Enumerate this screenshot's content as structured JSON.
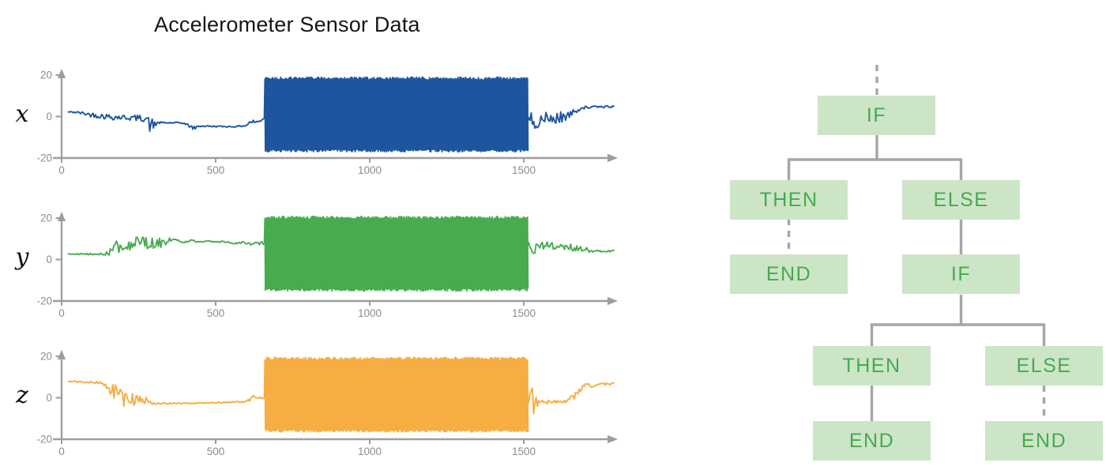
{
  "title": "Accelerometer Sensor Data",
  "colors": {
    "series_x": "#1e559e",
    "series_y": "#47ab4f",
    "series_z": "#f6ad41",
    "axis": "#9e9e9e",
    "tick_text": "#8c8c8c",
    "node_fill": "#cce5c7",
    "node_text": "#46a94f",
    "edge": "#a6a6a6"
  },
  "chart_data": [
    {
      "type": "line",
      "series_label": "x",
      "color": "#1e559e",
      "xlim": [
        0,
        1850
      ],
      "ylim": [
        -20,
        20
      ],
      "xticks": [
        "0",
        "500",
        "1000",
        "1500"
      ],
      "xtick_values": [
        0,
        500,
        1000,
        1500
      ],
      "yticks": [
        "20",
        "0",
        "-20"
      ],
      "ytick_values": [
        20,
        0,
        -20
      ],
      "grid": false,
      "keypoints_pre": [
        [
          22,
          2.2,
          0.3
        ],
        [
          50,
          2.0,
          0.5
        ],
        [
          100,
          0.8,
          1.2
        ],
        [
          160,
          -0.2,
          1.4
        ],
        [
          230,
          -0.6,
          1.4
        ],
        [
          278,
          -1.0,
          1.6
        ],
        [
          288,
          -5.0,
          3.8
        ],
        [
          298,
          -4.0,
          3.5
        ],
        [
          310,
          -3.0,
          0.5
        ],
        [
          395,
          -3.1,
          0.4
        ],
        [
          430,
          -5.7,
          1.0
        ],
        [
          445,
          -4.6,
          0.4
        ],
        [
          560,
          -4.9,
          0.3
        ],
        [
          598,
          -4.4,
          0.4
        ],
        [
          612,
          -2.6,
          1.0
        ],
        [
          640,
          -2.6,
          1.0
        ],
        [
          652,
          -1.0,
          1.0
        ],
        [
          658,
          -0.6,
          0.6
        ]
      ],
      "burst": {
        "t_start": 660,
        "t_end": 1512,
        "v_min": -17,
        "v_max": 19
      },
      "keypoints_post": [
        [
          1512,
          -1.0,
          2.5
        ],
        [
          1535,
          -2.0,
          4.0
        ],
        [
          1575,
          -1.5,
          3.5
        ],
        [
          1615,
          -0.5,
          3.0
        ],
        [
          1645,
          0.5,
          2.0
        ],
        [
          1665,
          2.5,
          1.2
        ],
        [
          1690,
          4.3,
          0.7
        ],
        [
          1730,
          4.6,
          0.5
        ],
        [
          1795,
          4.8,
          0.4
        ]
      ]
    },
    {
      "type": "line",
      "series_label": "y",
      "color": "#47ab4f",
      "xlim": [
        0,
        1850
      ],
      "ylim": [
        -20,
        20
      ],
      "xticks": [
        "0",
        "500",
        "1000",
        "1500"
      ],
      "xtick_values": [
        0,
        500,
        1000,
        1500
      ],
      "yticks": [
        "20",
        "0",
        "-20"
      ],
      "ytick_values": [
        20,
        0,
        -20
      ],
      "grid": false,
      "keypoints_pre": [
        [
          22,
          2.6,
          0.3
        ],
        [
          130,
          2.6,
          0.4
        ],
        [
          150,
          3.5,
          1.5
        ],
        [
          175,
          6.0,
          3.0
        ],
        [
          210,
          7.5,
          3.8
        ],
        [
          250,
          7.8,
          3.0
        ],
        [
          290,
          8.0,
          2.8
        ],
        [
          330,
          8.5,
          3.0
        ],
        [
          352,
          9.5,
          2.0
        ],
        [
          365,
          10.0,
          0.7
        ],
        [
          395,
          8.2,
          0.5
        ],
        [
          425,
          9.2,
          0.5
        ],
        [
          450,
          8.4,
          0.4
        ],
        [
          480,
          8.8,
          0.4
        ],
        [
          520,
          8.6,
          0.4
        ],
        [
          555,
          7.9,
          0.4
        ],
        [
          590,
          8.1,
          0.6
        ],
        [
          615,
          7.5,
          1.0
        ],
        [
          645,
          7.8,
          1.2
        ],
        [
          658,
          8.0,
          1.0
        ]
      ],
      "burst": {
        "t_start": 660,
        "t_end": 1512,
        "v_min": -15.2,
        "v_max": 20.8
      },
      "keypoints_post": [
        [
          1512,
          9.0,
          2.0
        ],
        [
          1519,
          12.0,
          5.0
        ],
        [
          1527,
          2.0,
          4.0
        ],
        [
          1540,
          6.5,
          3.0
        ],
        [
          1565,
          7.0,
          2.8
        ],
        [
          1595,
          6.3,
          2.2
        ],
        [
          1625,
          6.6,
          2.0
        ],
        [
          1655,
          5.8,
          1.8
        ],
        [
          1685,
          5.0,
          1.4
        ],
        [
          1715,
          4.4,
          0.9
        ],
        [
          1750,
          4.1,
          0.5
        ],
        [
          1795,
          4.1,
          0.4
        ]
      ]
    },
    {
      "type": "line",
      "series_label": "z",
      "color": "#f6ad41",
      "xlim": [
        0,
        1850
      ],
      "ylim": [
        -20,
        20
      ],
      "xticks": [
        "0",
        "500",
        "1000",
        "1500"
      ],
      "xtick_values": [
        0,
        500,
        1000,
        1500
      ],
      "yticks": [
        "20",
        "0",
        "-20"
      ],
      "ytick_values": [
        20,
        0,
        -20
      ],
      "grid": false,
      "keypoints_pre": [
        [
          22,
          7.8,
          0.3
        ],
        [
          60,
          7.6,
          0.4
        ],
        [
          125,
          7.3,
          0.5
        ],
        [
          140,
          6.5,
          2.0
        ],
        [
          155,
          5.0,
          3.5
        ],
        [
          175,
          2.0,
          4.5
        ],
        [
          195,
          -0.5,
          5.0
        ],
        [
          215,
          1.0,
          5.5
        ],
        [
          235,
          -1.5,
          4.0
        ],
        [
          255,
          -1.0,
          3.5
        ],
        [
          275,
          -2.0,
          2.5
        ],
        [
          290,
          -2.6,
          1.0
        ],
        [
          320,
          -2.8,
          0.4
        ],
        [
          420,
          -2.7,
          0.3
        ],
        [
          520,
          -2.3,
          0.3
        ],
        [
          590,
          -1.9,
          0.4
        ],
        [
          608,
          -1.0,
          0.8
        ],
        [
          622,
          0.3,
          0.9
        ],
        [
          638,
          -0.2,
          0.8
        ],
        [
          658,
          -0.3,
          0.5
        ]
      ],
      "burst": {
        "t_start": 660,
        "t_end": 1512,
        "v_min": -16.5,
        "v_max": 19.5
      },
      "keypoints_post": [
        [
          1512,
          -1.5,
          1.5
        ],
        [
          1520,
          0.0,
          6.0
        ],
        [
          1528,
          -3.0,
          8.0
        ],
        [
          1538,
          -2.0,
          3.0
        ],
        [
          1555,
          -2.3,
          1.2
        ],
        [
          1600,
          -2.0,
          0.9
        ],
        [
          1640,
          -1.6,
          0.9
        ],
        [
          1665,
          1.0,
          1.5
        ],
        [
          1690,
          5.5,
          1.5
        ],
        [
          1705,
          6.8,
          1.0
        ],
        [
          1722,
          5.6,
          0.8
        ],
        [
          1745,
          6.3,
          0.7
        ],
        [
          1770,
          6.6,
          0.6
        ],
        [
          1795,
          7.0,
          0.4
        ]
      ]
    }
  ],
  "flowchart": {
    "nodes": [
      {
        "id": "if-1",
        "label": "IF"
      },
      {
        "id": "then-1",
        "label": "THEN"
      },
      {
        "id": "else-1",
        "label": "ELSE"
      },
      {
        "id": "end-1",
        "label": "END"
      },
      {
        "id": "if-2",
        "label": "IF"
      },
      {
        "id": "then-2",
        "label": "THEN"
      },
      {
        "id": "else-2",
        "label": "ELSE"
      },
      {
        "id": "end-2",
        "label": "END"
      },
      {
        "id": "end-3",
        "label": "END"
      }
    ],
    "edges": [
      {
        "from": "parent-above",
        "to": "if-1",
        "style": "dashed"
      },
      {
        "from": "if-1",
        "to": "then-1",
        "style": "solid"
      },
      {
        "from": "if-1",
        "to": "else-1",
        "style": "solid"
      },
      {
        "from": "then-1",
        "to": "end-1",
        "style": "dashed"
      },
      {
        "from": "else-1",
        "to": "if-2",
        "style": "solid"
      },
      {
        "from": "if-2",
        "to": "then-2",
        "style": "solid"
      },
      {
        "from": "if-2",
        "to": "else-2",
        "style": "solid"
      },
      {
        "from": "then-2",
        "to": "end-2",
        "style": "solid"
      },
      {
        "from": "else-2",
        "to": "end-3",
        "style": "dashed"
      }
    ]
  }
}
